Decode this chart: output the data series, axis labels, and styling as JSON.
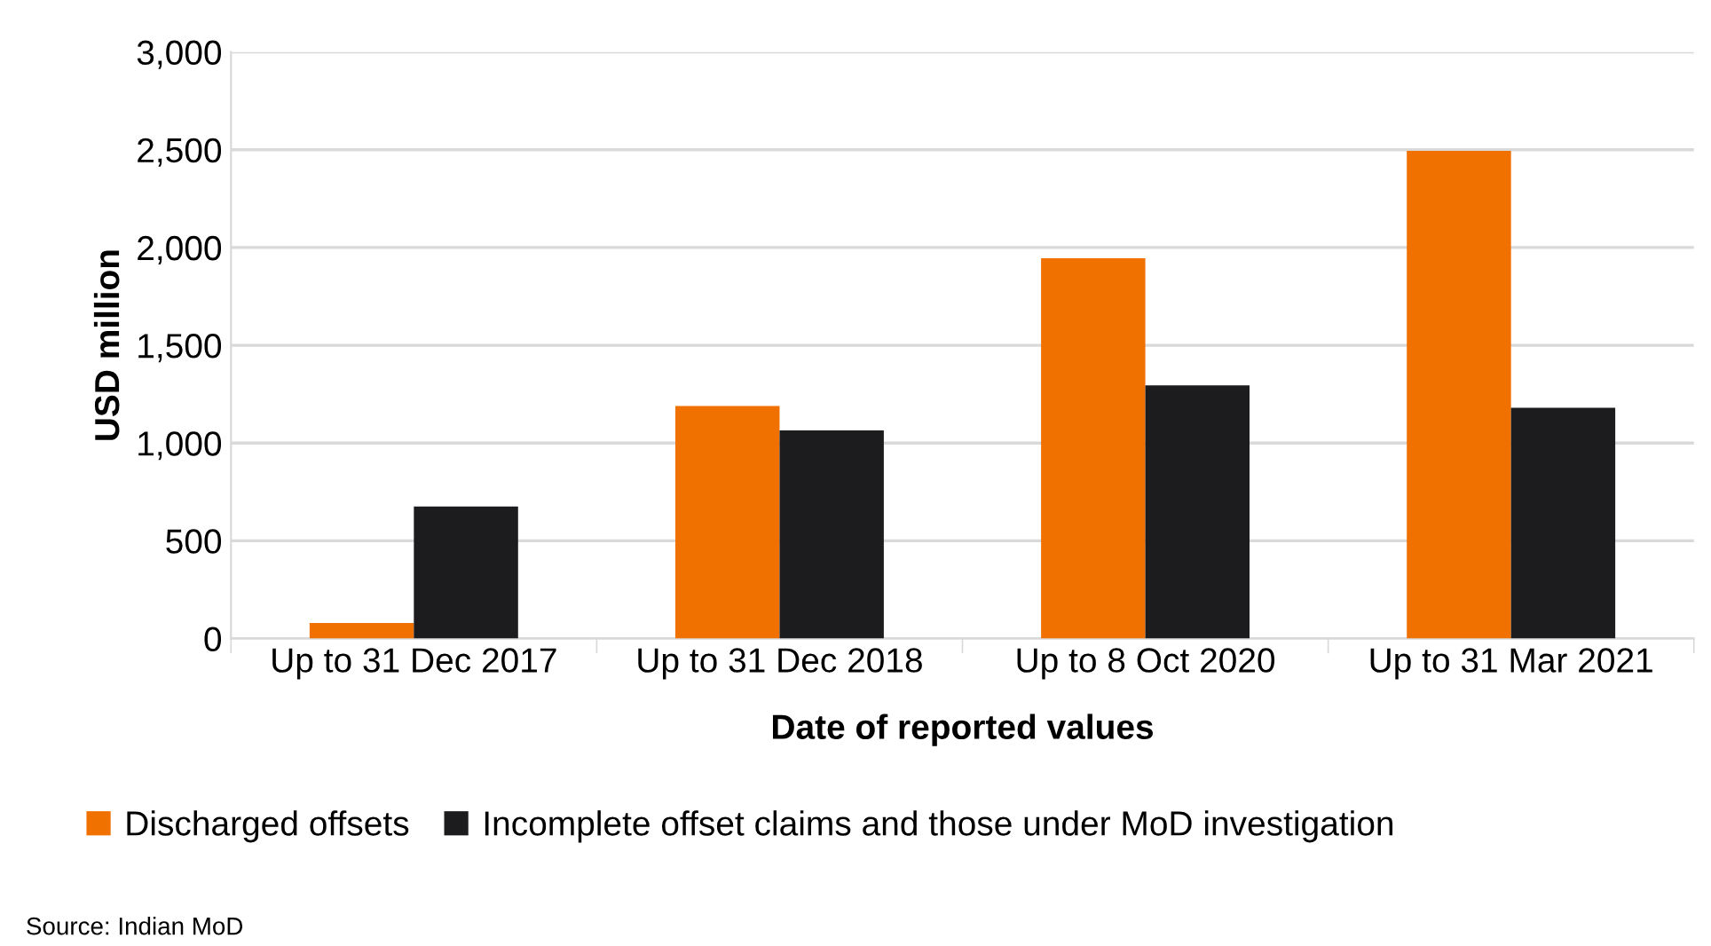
{
  "chart_data": {
    "type": "bar",
    "xlabel": "Date of reported values",
    "ylabel": "USD million",
    "categories": [
      "Up to 31 Dec 2017",
      "Up to 31 Dec 2018",
      "Up to 8 Oct 2020",
      "Up to 31 Mar 2021"
    ],
    "series": [
      {
        "name": "Discharged offsets",
        "color": "#f07000",
        "values": [
          80,
          1190,
          1945,
          2495
        ]
      },
      {
        "name": "Incomplete offset claims and those under MoD investigation",
        "color": "#1c1c1e",
        "values": [
          675,
          1065,
          1295,
          1180
        ]
      }
    ],
    "ylim": [
      0,
      3000
    ],
    "yticks": [
      {
        "value": 0,
        "label": "0"
      },
      {
        "value": 500,
        "label": "500"
      },
      {
        "value": 1000,
        "label": "1,000"
      },
      {
        "value": 1500,
        "label": "1,500"
      },
      {
        "value": 2000,
        "label": "2,000"
      },
      {
        "value": 2500,
        "label": "2,500"
      },
      {
        "value": 3000,
        "label": "3,000"
      }
    ],
    "grid": "y",
    "legend": "bottom",
    "annotations": [
      "Source: Indian MoD"
    ]
  }
}
